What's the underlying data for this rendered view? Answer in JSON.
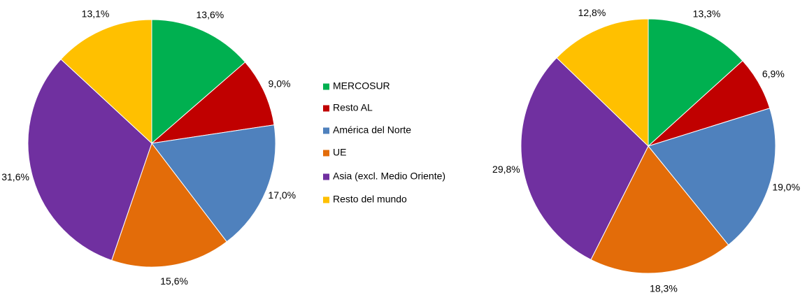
{
  "legend": {
    "categories": [
      "MERCOSUR",
      "Resto AL",
      "América del Norte",
      "UE",
      "Asia (excl. Medio Oriente)",
      "Resto del mundo"
    ],
    "colors": [
      "#00b050",
      "#c00000",
      "#4f81bd",
      "#e36c09",
      "#7030a0",
      "#ffc000"
    ]
  },
  "chart_data": [
    {
      "type": "pie",
      "values": [
        13.6,
        9.0,
        17.0,
        15.6,
        31.6,
        13.1
      ],
      "value_labels": [
        "13,6%",
        "9,0%",
        "17,0%",
        "15,6%",
        "31,6%",
        "13,1%"
      ]
    },
    {
      "type": "pie",
      "values": [
        13.3,
        6.9,
        19.0,
        18.3,
        29.8,
        12.8
      ],
      "value_labels": [
        "13,3%",
        "6,9%",
        "19,0%",
        "18,3%",
        "29,8%",
        "12,8%"
      ]
    }
  ]
}
